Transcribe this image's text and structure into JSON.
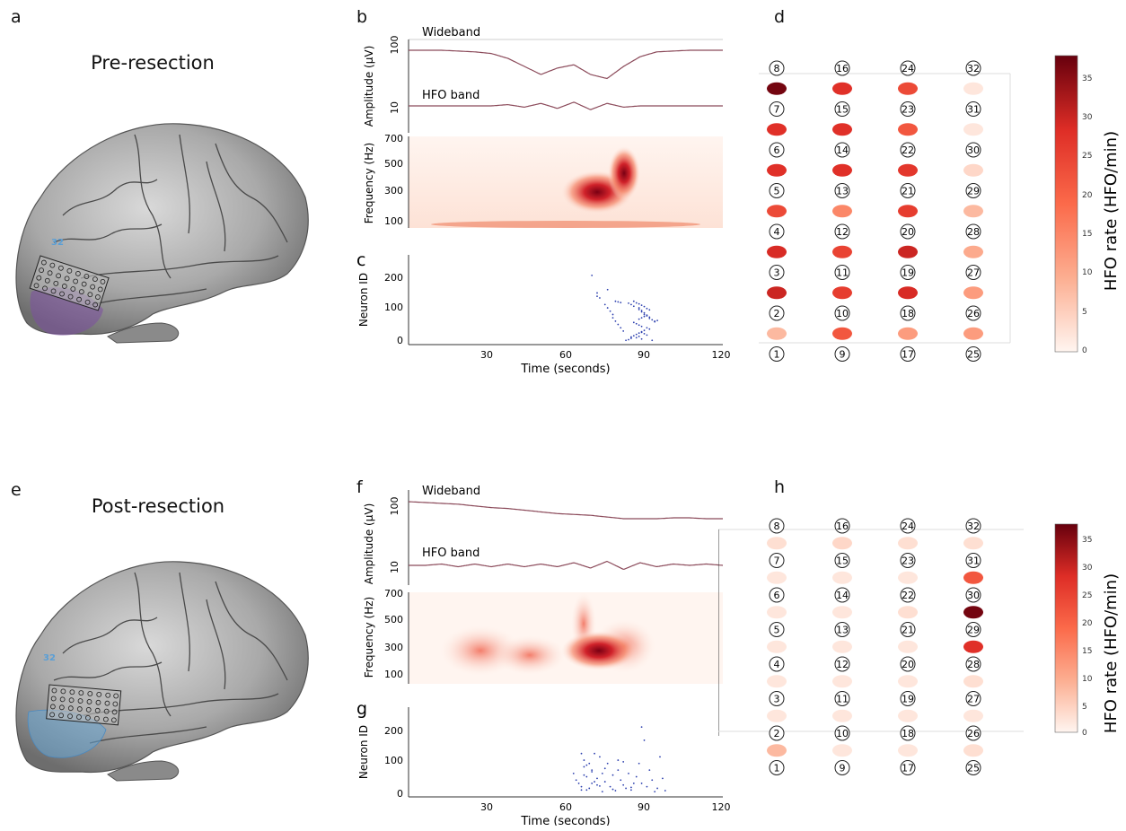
{
  "top": {
    "letters": {
      "a": "a",
      "b": "b",
      "c": "c",
      "d": "d"
    },
    "title": "Pre-resection",
    "electrode_label": "32",
    "wideband_label": "Wideband",
    "hfo_label": "HFO band",
    "amp_ylabel": "Amplitude (μV)",
    "amp_ticks": [
      "100",
      "10"
    ],
    "freq_ylabel": "Frequency (Hz)",
    "freq_ticks": [
      "700",
      "500",
      "300",
      "100"
    ],
    "raster_ylabel": "Neuron ID",
    "raster_yticks": [
      "200",
      "100",
      "0"
    ],
    "xticks": [
      "30",
      "60",
      "90",
      "120"
    ],
    "xlabel": "Time (seconds)",
    "colorbar_label": "HFO rate (HFO/min)",
    "colorbar_ticks": [
      "35",
      "30",
      "25",
      "20",
      "15",
      "10",
      "5",
      "0"
    ]
  },
  "bottom": {
    "letters": {
      "e": "e",
      "f": "f",
      "g": "g",
      "h": "h"
    },
    "title": "Post-resection",
    "electrode_label": "32",
    "wideband_label": "Wideband",
    "hfo_label": "HFO band",
    "amp_ylabel": "Amplitude (μV)",
    "amp_ticks": [
      "100",
      "10"
    ],
    "freq_ylabel": "Frequency (Hz)",
    "freq_ticks": [
      "700",
      "500",
      "300",
      "100"
    ],
    "raster_ylabel": "Neuron ID",
    "raster_yticks": [
      "200",
      "100",
      "0"
    ],
    "xticks": [
      "30",
      "60",
      "90",
      "120"
    ],
    "xlabel": "Time (seconds)",
    "colorbar_label": "HFO rate (HFO/min)",
    "colorbar_ticks": [
      "35",
      "30",
      "25",
      "20",
      "15",
      "10",
      "5",
      "0"
    ]
  },
  "colors": {
    "waveform": "#8b4a5a",
    "spike_dots": "#2b3fae",
    "resection_pre": "#7b4fa0",
    "resection_post": "#6aa7d6",
    "electrode_label": "#5a9fd6"
  },
  "chart_data": [
    {
      "type": "heatmap",
      "panel": "d",
      "electrode_labels_columns": [
        [
          "8",
          "7",
          "6",
          "5",
          "4",
          "3",
          "2",
          "1"
        ],
        [
          "16",
          "15",
          "14",
          "13",
          "12",
          "11",
          "10",
          "9"
        ],
        [
          "24",
          "23",
          "22",
          "21",
          "20",
          "19",
          "18",
          "17"
        ],
        [
          "32",
          "31",
          "30",
          "29",
          "28",
          "27",
          "26",
          "25"
        ]
      ],
      "hfo_rate_columns": [
        [
          37,
          28,
          28,
          24,
          29,
          30,
          8
        ],
        [
          28,
          28,
          28,
          15,
          25,
          26,
          22
        ],
        [
          24,
          22,
          27,
          26,
          30,
          29,
          12
        ],
        [
          2,
          2,
          4,
          8,
          10,
          12,
          12
        ]
      ],
      "colorbar": {
        "label": "HFO rate (HFO/min)",
        "range": [
          0,
          38
        ]
      }
    },
    {
      "type": "heatmap",
      "panel": "h",
      "electrode_labels_columns": [
        [
          "8",
          "7",
          "6",
          "5",
          "4",
          "3",
          "2",
          "1"
        ],
        [
          "16",
          "15",
          "14",
          "13",
          "12",
          "11",
          "10",
          "9"
        ],
        [
          "24",
          "23",
          "22",
          "21",
          "20",
          "19",
          "18",
          "17"
        ],
        [
          "32",
          "31",
          "30",
          "29",
          "28",
          "27",
          "26",
          "25"
        ]
      ],
      "hfo_rate_columns": [
        [
          3,
          2,
          2,
          2,
          2,
          2,
          8
        ],
        [
          4,
          2,
          2,
          2,
          2,
          2,
          2
        ],
        [
          3,
          2,
          3,
          2,
          2,
          2,
          2
        ],
        [
          3,
          22,
          37,
          28,
          3,
          2,
          3
        ]
      ],
      "colorbar": {
        "label": "HFO rate (HFO/min)",
        "range": [
          0,
          38
        ]
      }
    },
    {
      "type": "scatter",
      "panel": "c",
      "xlabel": "Time (seconds)",
      "ylabel": "Neuron ID",
      "xlim": [
        0,
        120
      ],
      "ylim": [
        0,
        260
      ],
      "x": [
        70,
        72,
        76,
        72,
        73,
        79,
        80,
        81,
        84,
        85,
        86,
        88,
        88,
        89,
        89,
        90,
        90,
        91,
        92,
        92,
        93,
        94,
        86,
        87,
        88,
        89,
        91,
        92,
        90,
        89,
        88,
        87,
        86,
        85,
        85,
        84,
        83,
        82,
        81,
        80,
        79,
        78,
        78,
        77,
        76,
        75,
        86,
        87,
        88,
        89,
        90,
        91,
        92,
        89,
        90,
        91,
        88,
        87,
        89,
        93,
        94,
        95,
        88,
        89,
        90,
        91
      ],
      "y": [
        198,
        145,
        155,
        135,
        130,
        120,
        118,
        116,
        114,
        110,
        105,
        100,
        95,
        92,
        88,
        85,
        80,
        76,
        72,
        68,
        64,
        60,
        56,
        52,
        48,
        44,
        40,
        36,
        32,
        28,
        24,
        20,
        16,
        12,
        8,
        4,
        2,
        30,
        40,
        50,
        60,
        70,
        80,
        90,
        100,
        110,
        120,
        115,
        112,
        108,
        104,
        98,
        94,
        26,
        22,
        18,
        14,
        10,
        6,
        2,
        58,
        62,
        66,
        70,
        74,
        78
      ],
      "dot_color": "#2b3fae"
    },
    {
      "type": "scatter",
      "panel": "g",
      "xlabel": "Time (seconds)",
      "ylabel": "Neuron ID",
      "xlim": [
        0,
        120
      ],
      "ylim": [
        0,
        260
      ],
      "x": [
        63,
        64,
        65,
        66,
        66,
        67,
        67,
        68,
        68,
        69,
        69,
        70,
        70,
        71,
        72,
        72,
        73,
        74,
        74,
        75,
        76,
        77,
        78,
        79,
        80,
        80,
        81,
        82,
        83,
        84,
        85,
        86,
        87,
        88,
        89,
        90,
        91,
        92,
        93,
        94,
        95,
        96,
        97,
        98,
        66,
        67,
        68,
        70,
        71,
        73,
        75,
        78,
        82,
        85,
        89
      ],
      "y": [
        60,
        40,
        30,
        120,
        20,
        100,
        80,
        50,
        10,
        90,
        15,
        70,
        30,
        120,
        45,
        25,
        110,
        60,
        5,
        35,
        90,
        20,
        55,
        8,
        100,
        70,
        40,
        25,
        15,
        60,
        10,
        30,
        50,
        90,
        200,
        160,
        20,
        70,
        40,
        5,
        15,
        110,
        45,
        8,
        10,
        55,
        85,
        65,
        35,
        22,
        75,
        12,
        95,
        18,
        30
      ],
      "dot_color": "#2b3fae"
    },
    {
      "type": "line",
      "panel": "b",
      "series": [
        {
          "name": "Wideband",
          "y": [
            100,
            100,
            100,
            99,
            98,
            96,
            90,
            80,
            70,
            78,
            82,
            70,
            65,
            80,
            92,
            98,
            99,
            100,
            100,
            100
          ]
        },
        {
          "name": "HFO band",
          "y": [
            10,
            10,
            10,
            10,
            10,
            10,
            11,
            9,
            12,
            8,
            13,
            7,
            12,
            9,
            10,
            10,
            10,
            10,
            10,
            10
          ]
        }
      ],
      "xlim": [
        0,
        120
      ],
      "ylabel": "Amplitude (μV)"
    },
    {
      "type": "line",
      "panel": "f",
      "series": [
        {
          "name": "Wideband",
          "y": [
            100,
            99,
            98,
            97,
            95,
            93,
            92,
            90,
            88,
            86,
            85,
            84,
            82,
            80,
            80,
            80,
            81,
            81,
            80,
            80
          ]
        },
        {
          "name": "HFO band",
          "y": [
            10,
            10,
            11,
            9,
            11,
            9,
            11,
            9,
            11,
            9,
            12,
            8,
            13,
            7,
            12,
            9,
            11,
            10,
            11,
            10
          ]
        }
      ],
      "xlim": [
        0,
        120
      ],
      "ylabel": "Amplitude (μV)"
    }
  ]
}
